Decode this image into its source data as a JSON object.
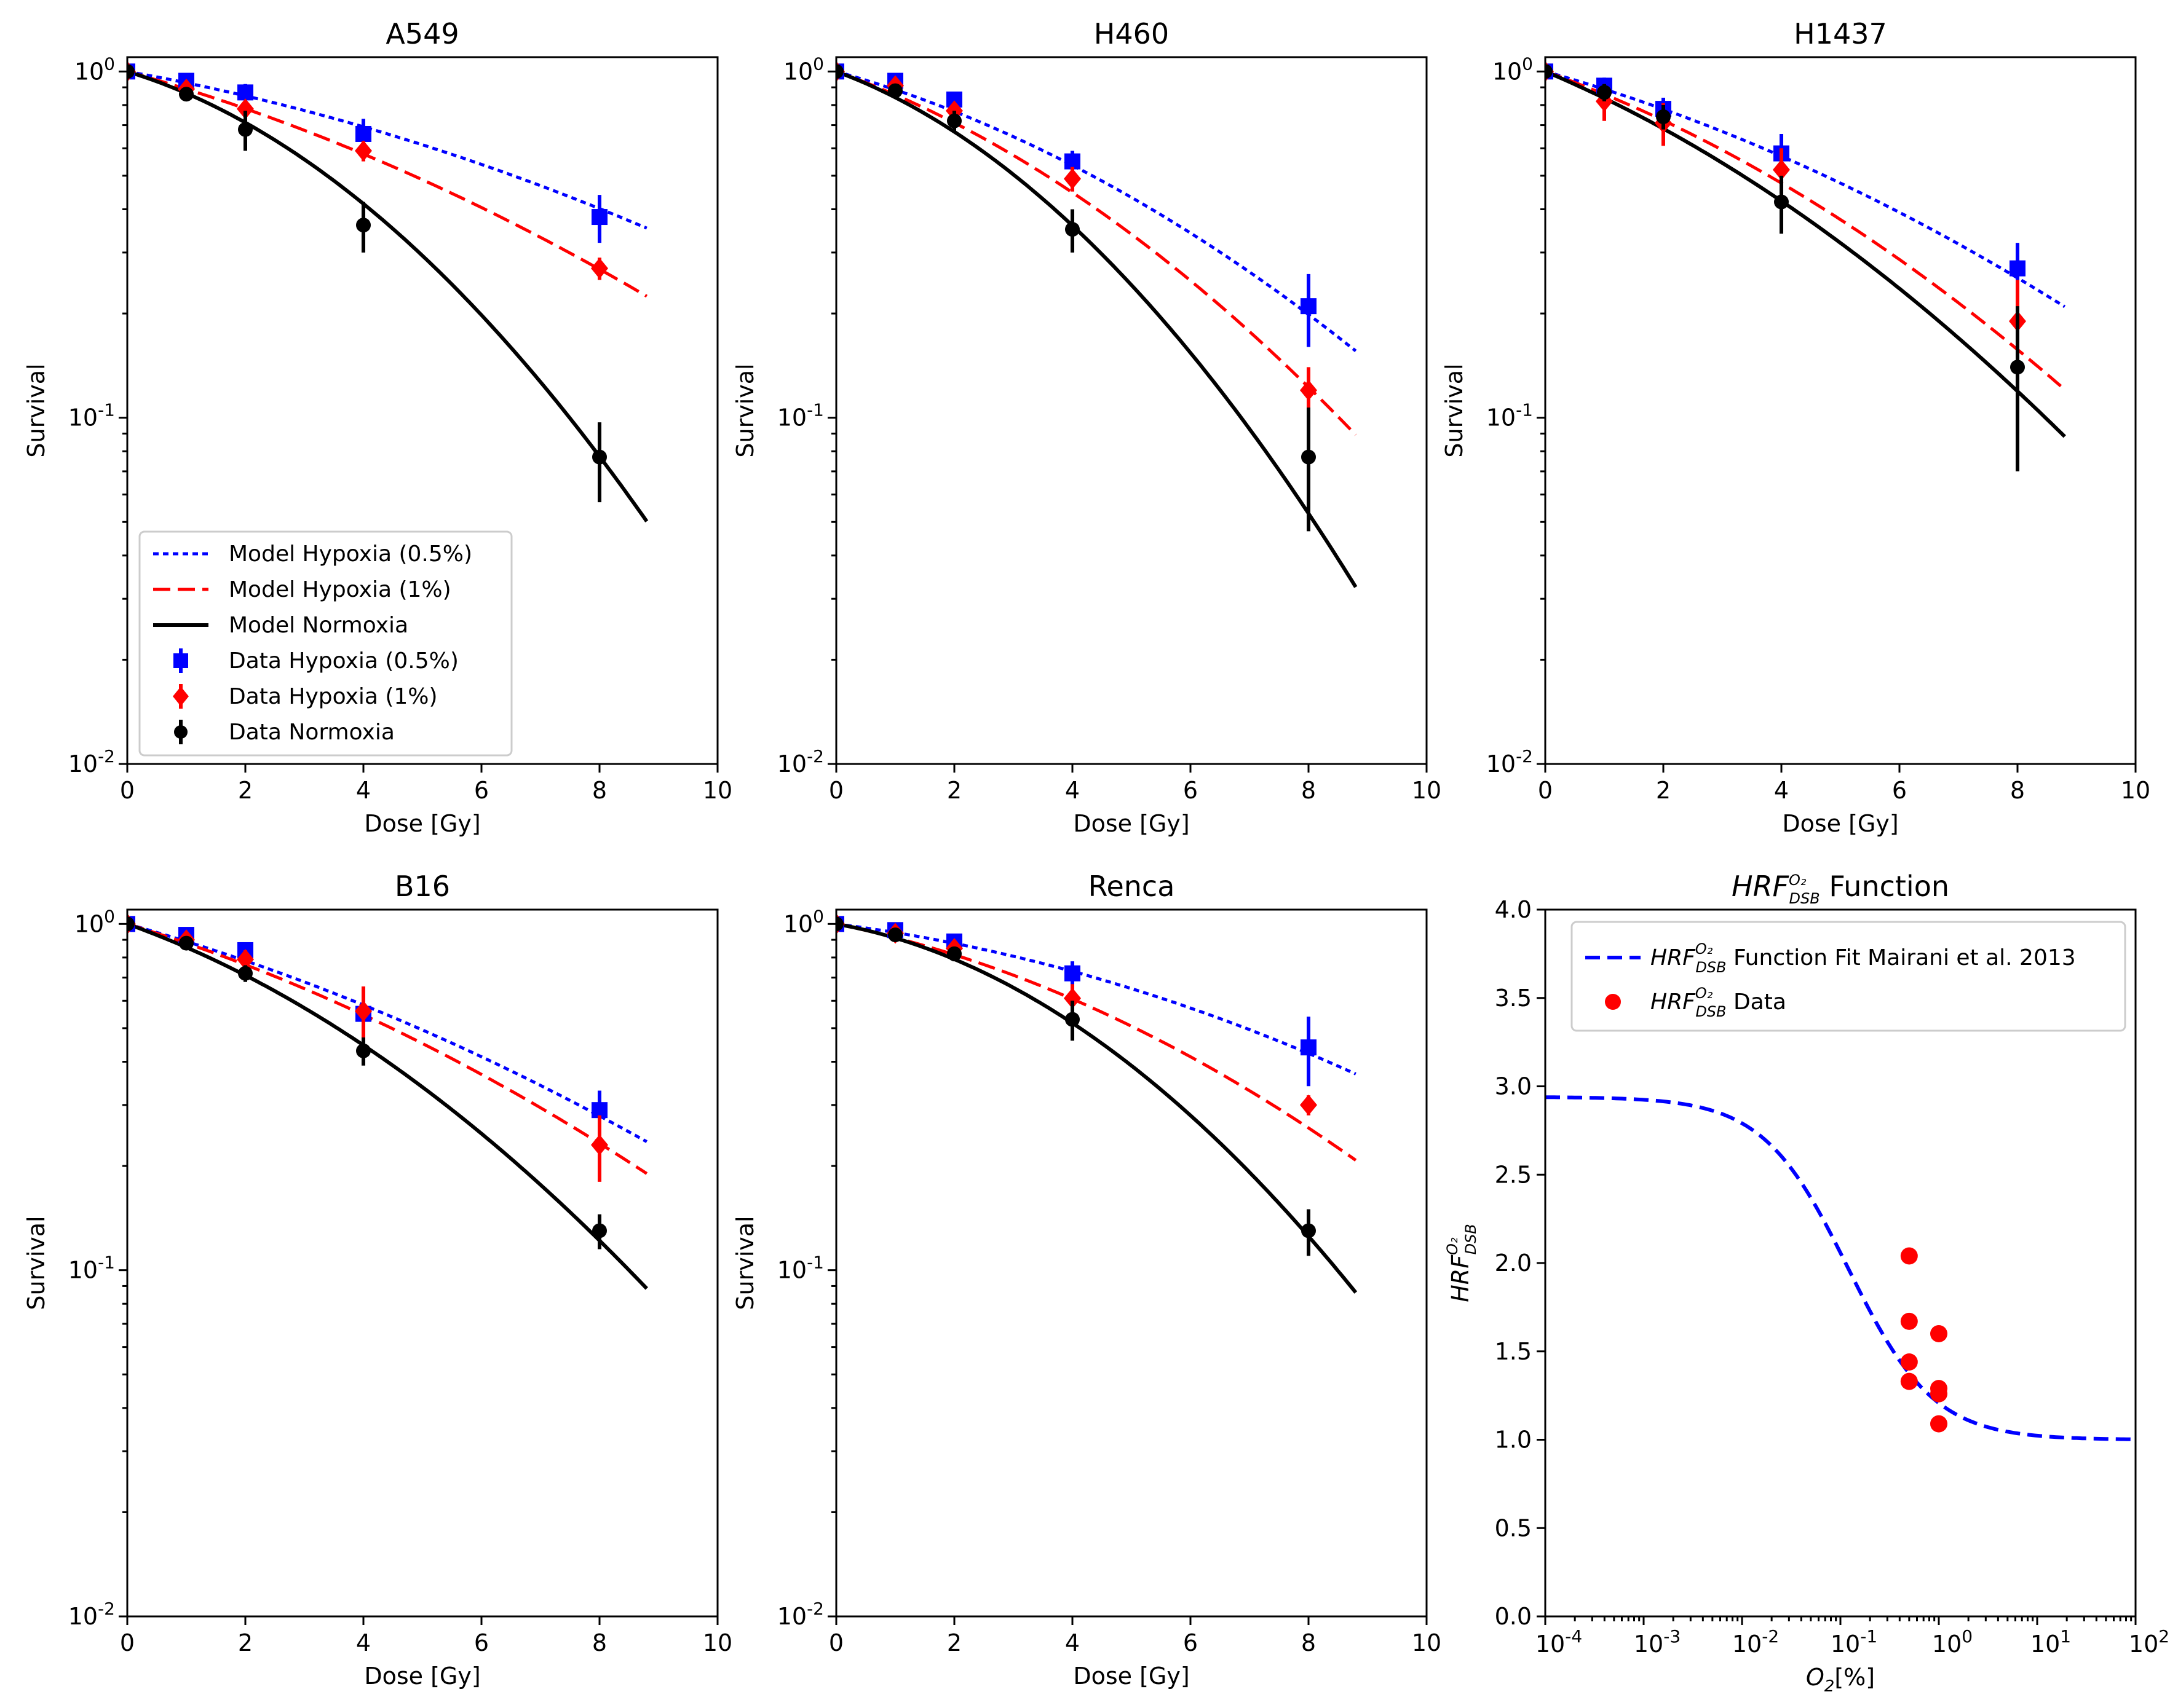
{
  "colors": {
    "hypoxia_05": "#0000ff",
    "hypoxia_1": "#ff0000",
    "normoxia": "#000000"
  },
  "chart_data": [
    {
      "type": "line",
      "title": "A549",
      "xlabel": "Dose [Gy]",
      "ylabel": "Survival",
      "xlim": [
        0,
        10
      ],
      "ylim": [
        0.01,
        1.1
      ],
      "yscale": "log",
      "xticks": [
        "0",
        "2",
        "4",
        "6",
        "8",
        "10"
      ],
      "yticks": [
        {
          "e": "0",
          "v": 1
        },
        {
          "e": "-1",
          "v": 0.1
        },
        {
          "e": "-2",
          "v": 0.01
        }
      ],
      "legend_position": "lower-left",
      "models": {
        "hypoxia_05": {
          "name": "Model Hypoxia (0.5%)",
          "a": 0.07,
          "b": 0.0055
        },
        "hypoxia_1": {
          "name": "Model Hypoxia (1%)",
          "a": 0.11,
          "b": 0.0068
        },
        "normoxia": {
          "name": "Model Normoxia",
          "a": 0.12,
          "b": 0.025
        }
      },
      "data": {
        "hypoxia_05": {
          "name": "Data Hypoxia (0.5%)",
          "points": [
            [
              0,
              1.0,
              0.03
            ],
            [
              1,
              0.94,
              0.04
            ],
            [
              2,
              0.87,
              0.05
            ],
            [
              4,
              0.66,
              0.07
            ],
            [
              8,
              0.38,
              0.06
            ]
          ]
        },
        "hypoxia_1": {
          "name": "Data Hypoxia (1%)",
          "points": [
            [
              0,
              1.0,
              0.02
            ],
            [
              1,
              0.89,
              0.03
            ],
            [
              2,
              0.78,
              0.04
            ],
            [
              4,
              0.59,
              0.04
            ],
            [
              8,
              0.27,
              0.02
            ]
          ]
        },
        "normoxia": {
          "name": "Data Normoxia",
          "points": [
            [
              0,
              1.0,
              0.02
            ],
            [
              1,
              0.86,
              0.04
            ],
            [
              2,
              0.68,
              0.09
            ],
            [
              4,
              0.36,
              0.06
            ],
            [
              8,
              0.077,
              0.02
            ]
          ]
        }
      },
      "x_max_curve": 8.8
    },
    {
      "type": "line",
      "title": "H460",
      "xlabel": "Dose [Gy]",
      "ylabel": "Survival",
      "xlim": [
        0,
        10
      ],
      "ylim": [
        0.01,
        1.1
      ],
      "yscale": "log",
      "xticks": [
        "0",
        "2",
        "4",
        "6",
        "8",
        "10"
      ],
      "yticks": [
        {
          "e": "0",
          "v": 1
        },
        {
          "e": "-1",
          "v": 0.1
        },
        {
          "e": "-2",
          "v": 0.01
        }
      ],
      "models": {
        "hypoxia_05": {
          "name": "Model Hypoxia (0.5%)",
          "a": 0.11,
          "b": 0.0115
        },
        "hypoxia_1": {
          "name": "Model Hypoxia (1%)",
          "a": 0.14,
          "b": 0.0153
        },
        "normoxia": {
          "name": "Model Normoxia",
          "a": 0.145,
          "b": 0.0278
        }
      },
      "data": {
        "hypoxia_05": {
          "name": "Data Hypoxia (0.5%)",
          "points": [
            [
              0,
              1.0,
              0.03
            ],
            [
              1,
              0.94,
              0.03
            ],
            [
              2,
              0.83,
              0.04
            ],
            [
              4,
              0.55,
              0.04
            ],
            [
              8,
              0.21,
              0.05
            ]
          ]
        },
        "hypoxia_1": {
          "name": "Data Hypoxia (1%)",
          "points": [
            [
              0,
              1.0,
              0.02
            ],
            [
              1,
              0.91,
              0.03
            ],
            [
              2,
              0.77,
              0.04
            ],
            [
              4,
              0.49,
              0.04
            ],
            [
              8,
              0.12,
              0.02
            ]
          ]
        },
        "normoxia": {
          "name": "Data Normoxia",
          "points": [
            [
              0,
              1.0,
              0.02
            ],
            [
              1,
              0.88,
              0.04
            ],
            [
              2,
              0.72,
              0.05
            ],
            [
              4,
              0.35,
              0.05
            ],
            [
              8,
              0.077,
              0.03
            ]
          ]
        }
      },
      "x_max_curve": 8.8
    },
    {
      "type": "line",
      "title": "H1437",
      "xlabel": "Dose [Gy]",
      "ylabel": "Survival",
      "xlim": [
        0,
        10
      ],
      "ylim": [
        0.01,
        1.1
      ],
      "yscale": "log",
      "xticks": [
        "0",
        "2",
        "4",
        "6",
        "8",
        "10"
      ],
      "yticks": [
        {
          "e": "0",
          "v": 1
        },
        {
          "e": "-1",
          "v": 0.1
        },
        {
          "e": "-2",
          "v": 0.01
        }
      ],
      "models": {
        "hypoxia_05": {
          "name": "Model Hypoxia (0.5%)",
          "a": 0.11,
          "b": 0.0077
        },
        "hypoxia_1": {
          "name": "Model Hypoxia (1%)",
          "a": 0.14,
          "b": 0.0114
        },
        "normoxia": {
          "name": "Model Normoxia",
          "a": 0.165,
          "b": 0.0126
        }
      },
      "data": {
        "hypoxia_05": {
          "name": "Data Hypoxia (0.5%)",
          "points": [
            [
              0,
              1.0,
              0.03
            ],
            [
              1,
              0.91,
              0.05
            ],
            [
              2,
              0.78,
              0.06
            ],
            [
              4,
              0.58,
              0.08
            ],
            [
              8,
              0.27,
              0.05
            ]
          ]
        },
        "hypoxia_1": {
          "name": "Data Hypoxia (1%)",
          "points": [
            [
              0,
              1.0,
              0.02
            ],
            [
              1,
              0.82,
              0.1
            ],
            [
              2,
              0.71,
              0.1
            ],
            [
              4,
              0.52,
              0.08
            ],
            [
              8,
              0.19,
              0.06
            ]
          ]
        },
        "normoxia": {
          "name": "Data Normoxia",
          "points": [
            [
              0,
              1.0,
              0.02
            ],
            [
              1,
              0.87,
              0.05
            ],
            [
              2,
              0.74,
              0.06
            ],
            [
              4,
              0.42,
              0.08
            ],
            [
              8,
              0.14,
              0.07
            ]
          ]
        }
      },
      "x_max_curve": 8.8
    },
    {
      "type": "line",
      "title": "B16",
      "xlabel": "Dose [Gy]",
      "ylabel": "Survival",
      "xlim": [
        0,
        10
      ],
      "ylim": [
        0.01,
        1.1
      ],
      "yscale": "log",
      "xticks": [
        "0",
        "2",
        "4",
        "6",
        "8",
        "10"
      ],
      "yticks": [
        {
          "e": "0",
          "v": 1
        },
        {
          "e": "-1",
          "v": 0.1
        },
        {
          "e": "-2",
          "v": 0.01
        }
      ],
      "models": {
        "hypoxia_05": {
          "name": "Model Hypoxia (0.5%)",
          "a": 0.11,
          "b": 0.0062
        },
        "hypoxia_1": {
          "name": "Model Hypoxia (1%)",
          "a": 0.12,
          "b": 0.0078
        },
        "normoxia": {
          "name": "Model Normoxia",
          "a": 0.14,
          "b": 0.0154
        }
      },
      "data": {
        "hypoxia_05": {
          "name": "Data Hypoxia (0.5%)",
          "points": [
            [
              0,
              1.0,
              0.03
            ],
            [
              1,
              0.93,
              0.03
            ],
            [
              2,
              0.84,
              0.04
            ],
            [
              4,
              0.55,
              0.05
            ],
            [
              8,
              0.29,
              0.04
            ]
          ]
        },
        "hypoxia_1": {
          "name": "Data Hypoxia (1%)",
          "points": [
            [
              0,
              1.0,
              0.02
            ],
            [
              1,
              0.9,
              0.03
            ],
            [
              2,
              0.79,
              0.05
            ],
            [
              4,
              0.56,
              0.1
            ],
            [
              8,
              0.23,
              0.05
            ]
          ]
        },
        "normoxia": {
          "name": "Data Normoxia",
          "points": [
            [
              0,
              1.0,
              0.02
            ],
            [
              1,
              0.88,
              0.03
            ],
            [
              2,
              0.72,
              0.04
            ],
            [
              4,
              0.43,
              0.04
            ],
            [
              8,
              0.13,
              0.015
            ]
          ]
        }
      },
      "x_max_curve": 8.8
    },
    {
      "type": "line",
      "title": "Renca",
      "xlabel": "Dose [Gy]",
      "ylabel": "Survival",
      "xlim": [
        0,
        10
      ],
      "ylim": [
        0.01,
        1.1
      ],
      "yscale": "log",
      "xticks": [
        "0",
        "2",
        "4",
        "6",
        "8",
        "10"
      ],
      "yticks": [
        {
          "e": "0",
          "v": 1
        },
        {
          "e": "-1",
          "v": 0.1
        },
        {
          "e": "-2",
          "v": 0.01
        }
      ],
      "models": {
        "hypoxia_05": {
          "name": "Model Hypoxia (0.5%)",
          "a": 0.05,
          "b": 0.0072
        },
        "hypoxia_1": {
          "name": "Model Hypoxia (1%)",
          "a": 0.08,
          "b": 0.0112
        },
        "normoxia": {
          "name": "Model Normoxia",
          "a": 0.07,
          "b": 0.0237
        }
      },
      "data": {
        "hypoxia_05": {
          "name": "Data Hypoxia (0.5%)",
          "points": [
            [
              0,
              1.0,
              0.03
            ],
            [
              1,
              0.96,
              0.03
            ],
            [
              2,
              0.89,
              0.04
            ],
            [
              4,
              0.72,
              0.06
            ],
            [
              8,
              0.44,
              0.1
            ]
          ]
        },
        "hypoxia_1": {
          "name": "Data Hypoxia (1%)",
          "points": [
            [
              0,
              1.0,
              0.02
            ],
            [
              1,
              0.94,
              0.03
            ],
            [
              2,
              0.85,
              0.03
            ],
            [
              4,
              0.61,
              0.06
            ],
            [
              8,
              0.3,
              0.02
            ]
          ]
        },
        "normoxia": {
          "name": "Data Normoxia",
          "points": [
            [
              0,
              1.0,
              0.02
            ],
            [
              1,
              0.93,
              0.03
            ],
            [
              2,
              0.82,
              0.04
            ],
            [
              4,
              0.53,
              0.07
            ],
            [
              8,
              0.13,
              0.02
            ]
          ]
        }
      },
      "x_max_curve": 8.8
    },
    {
      "type": "line",
      "title_prefix": "HRF",
      "title_sub": "DSB",
      "title_sup": "O₂",
      "title_suffix": " Function",
      "xlabel_main": "O",
      "xlabel_sub": "2",
      "xlabel_suffix": "[%]",
      "ylabel_main": "HRF",
      "ylabel_sub": "DSB",
      "ylabel_sup": "O₂",
      "xscale": "log",
      "xlim_exp": [
        -4,
        2
      ],
      "ylim": [
        0,
        4
      ],
      "xticks": [
        {
          "e": "-4",
          "v": -4
        },
        {
          "e": "-3",
          "v": -3
        },
        {
          "e": "-2",
          "v": -2
        },
        {
          "e": "-1",
          "v": -1
        },
        {
          "e": "0",
          "v": 0
        },
        {
          "e": "1",
          "v": 1
        },
        {
          "e": "2",
          "v": 2
        }
      ],
      "yticks": [
        "0.0",
        "0.5",
        "1.0",
        "1.5",
        "2.0",
        "2.5",
        "3.0",
        "3.5",
        "4.0"
      ],
      "legend_position": "upper-right",
      "fit": {
        "name_suffix": " Function Fit Mairani et al. 2013",
        "hmax": 2.94,
        "hmin": 1.0,
        "k": 0.12
      },
      "scatter": {
        "name_suffix": " Data",
        "points": [
          [
            0.5,
            2.04
          ],
          [
            0.5,
            1.67
          ],
          [
            0.5,
            1.44
          ],
          [
            0.5,
            1.33
          ],
          [
            1.0,
            1.6
          ],
          [
            1.0,
            1.29
          ],
          [
            1.0,
            1.26
          ],
          [
            1.0,
            1.09
          ]
        ]
      }
    }
  ]
}
